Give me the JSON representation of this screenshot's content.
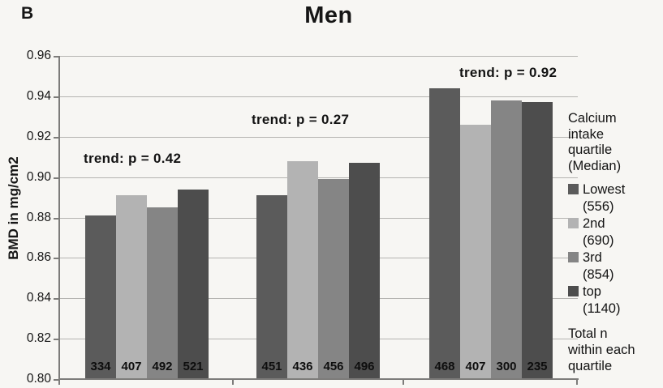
{
  "panel_label": "B",
  "colors": {
    "background": "#f7f6f3",
    "gridline": "#b5b4b1",
    "axis": "#7d7c7a",
    "text": "#151515",
    "bar_lowest": "#5b5b5b",
    "bar_2nd": "#b3b3b3",
    "bar_3rd": "#858585",
    "bar_top": "#4d4d4d"
  },
  "chart_data": {
    "type": "bar",
    "title": "Men",
    "xlabel": "",
    "ylabel": "BMD in mg/cm2",
    "ylim": [
      0.8,
      0.96
    ],
    "ytick_step": 0.02,
    "yticks": [
      "0.96",
      "0.94",
      "0.92",
      "0.90",
      "0.88",
      "0.86",
      "0.84",
      "0.82",
      "0.80"
    ],
    "grid": true,
    "legend_position": "right",
    "group_annotations": [
      "trend: p = 0.42",
      "trend: p = 0.27",
      "trend: p = 0.92"
    ],
    "series": [
      {
        "name": "Lowest",
        "median": "(556)",
        "color": "#5b5b5b",
        "values": [
          0.881,
          0.891,
          0.944
        ],
        "counts": [
          334,
          451,
          468
        ]
      },
      {
        "name": "2nd",
        "median": "(690)",
        "color": "#b3b3b3",
        "values": [
          0.891,
          0.908,
          0.926
        ],
        "counts": [
          407,
          436,
          407
        ]
      },
      {
        "name": "3rd",
        "median": "(854)",
        "color": "#858585",
        "values": [
          0.885,
          0.899,
          0.938
        ],
        "counts": [
          492,
          456,
          300
        ]
      },
      {
        "name": "top",
        "median": "(1140)",
        "color": "#4d4d4d",
        "values": [
          0.894,
          0.907,
          0.937
        ],
        "counts": [
          521,
          496,
          235
        ]
      }
    ],
    "legend_title": "Calcium intake quartile (Median)",
    "legend_footnote": "Total n within each quartile"
  }
}
